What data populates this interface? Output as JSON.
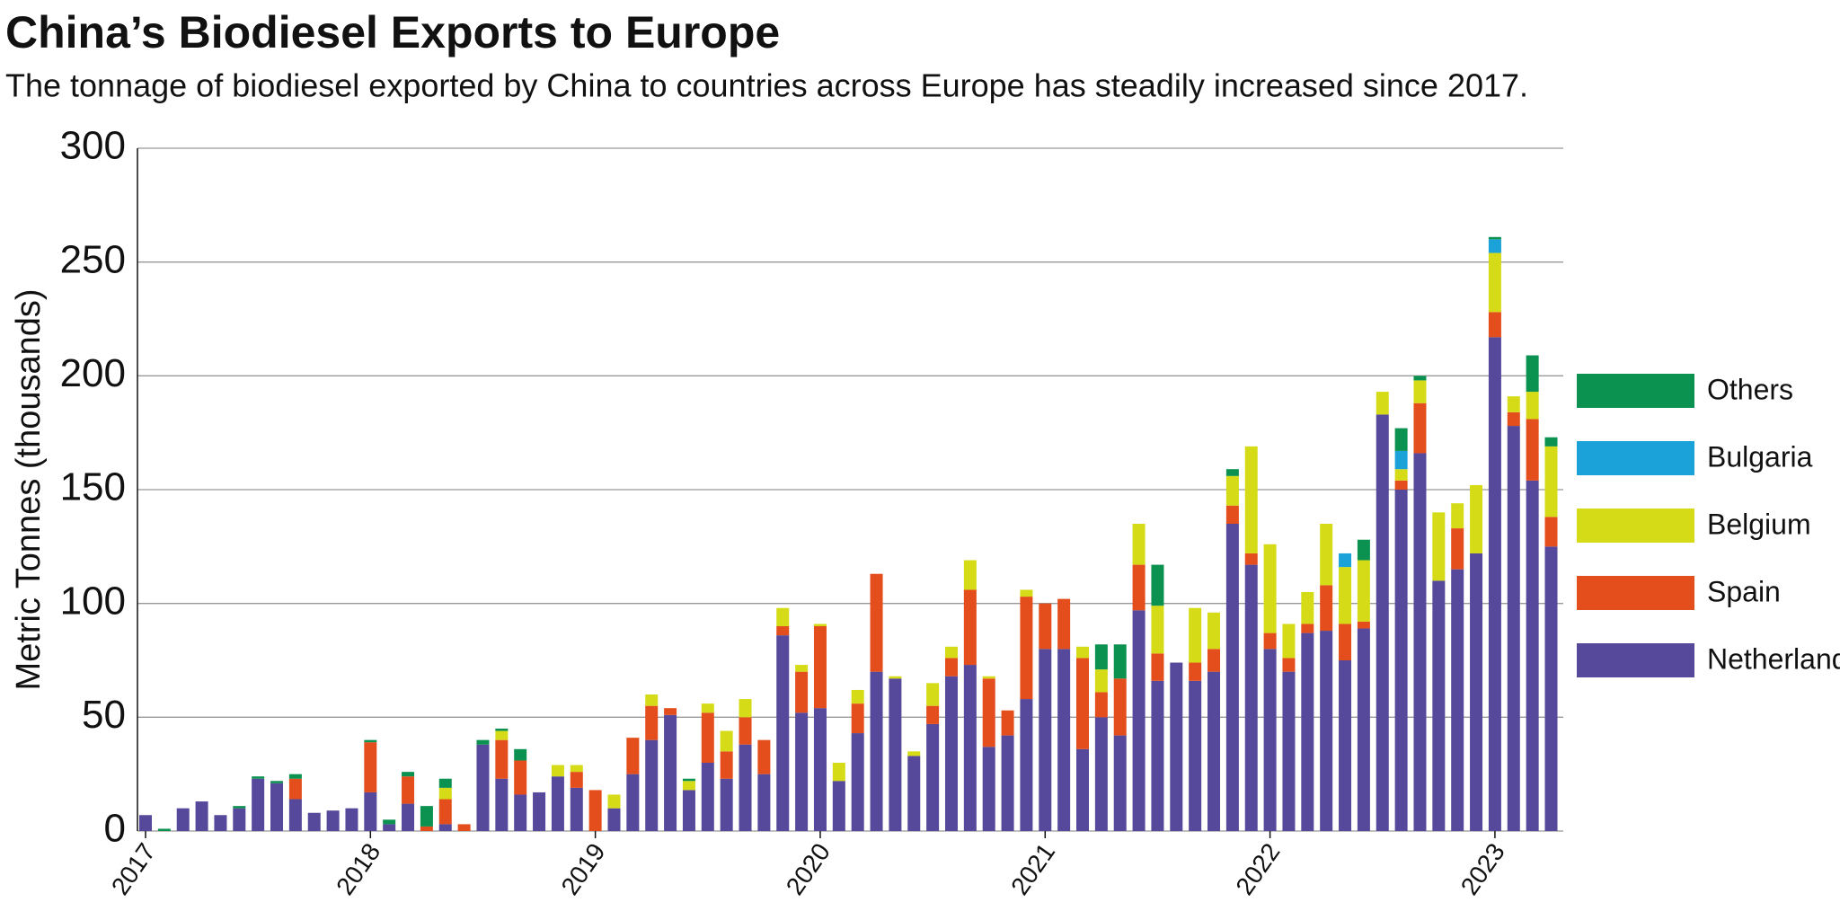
{
  "chart_data": {
    "type": "bar",
    "stacked": true,
    "title": "China’s Biodiesel Exports to Europe",
    "subtitle": "The tonnage of biodiesel exported by China to countries across Europe has steadily increased since 2017.",
    "y_label": "Metric Tonnes (thousands)",
    "categories": [
      "2017",
      null,
      null,
      null,
      null,
      null,
      null,
      null,
      null,
      null,
      null,
      null,
      "2018",
      null,
      null,
      null,
      null,
      null,
      null,
      null,
      null,
      null,
      null,
      null,
      "2019",
      null,
      null,
      null,
      null,
      null,
      null,
      null,
      null,
      null,
      null,
      null,
      "2020",
      null,
      null,
      null,
      null,
      null,
      null,
      null,
      null,
      null,
      null,
      null,
      "2021",
      null,
      null,
      null,
      null,
      null,
      null,
      null,
      null,
      null,
      null,
      null,
      "2022",
      null,
      null,
      null,
      null,
      null,
      null,
      null,
      null,
      null,
      null,
      null,
      "2023",
      null,
      null,
      null
    ],
    "series": [
      {
        "name": "Netherlands",
        "color": "#56489a",
        "values": [
          7,
          0,
          10,
          13,
          7,
          10,
          23,
          21,
          14,
          8,
          9,
          10,
          17,
          3,
          12,
          0,
          3,
          0,
          38,
          23,
          16,
          17,
          24,
          19,
          0,
          10,
          25,
          40,
          51,
          18,
          30,
          23,
          38,
          25,
          86,
          52,
          54,
          22,
          43,
          70,
          67,
          33,
          47,
          68,
          73,
          37,
          42,
          58,
          80,
          80,
          36,
          50,
          42,
          97,
          66,
          74,
          66,
          70,
          135,
          117,
          80,
          70,
          87,
          88,
          75,
          89,
          183,
          150,
          166,
          110,
          115,
          122,
          217,
          178,
          154,
          125
        ]
      },
      {
        "name": "Spain",
        "color": "#e44e1c",
        "values": [
          0,
          0,
          0,
          0,
          0,
          0,
          0,
          0,
          9,
          0,
          0,
          0,
          22,
          0,
          12,
          2,
          11,
          3,
          0,
          17,
          15,
          0,
          0,
          7,
          18,
          0,
          16,
          15,
          3,
          0,
          22,
          12,
          12,
          15,
          4,
          18,
          36,
          0,
          13,
          43,
          0,
          0,
          8,
          8,
          33,
          30,
          11,
          45,
          20,
          22,
          40,
          11,
          25,
          20,
          12,
          0,
          8,
          10,
          8,
          5,
          7,
          6,
          4,
          20,
          16,
          3,
          0,
          4,
          22,
          0,
          18,
          0,
          11,
          6,
          27,
          13
        ]
      },
      {
        "name": "Belgium",
        "color": "#d5dc17",
        "values": [
          0,
          0,
          0,
          0,
          0,
          0,
          0,
          0,
          0,
          0,
          0,
          0,
          0,
          0,
          0,
          0,
          5,
          0,
          0,
          4,
          0,
          0,
          5,
          3,
          0,
          6,
          0,
          5,
          0,
          4,
          4,
          9,
          8,
          0,
          8,
          3,
          1,
          8,
          6,
          0,
          1,
          2,
          10,
          5,
          13,
          1,
          0,
          3,
          0,
          0,
          5,
          10,
          0,
          18,
          21,
          0,
          24,
          16,
          13,
          47,
          39,
          15,
          14,
          27,
          25,
          27,
          10,
          5,
          10,
          30,
          11,
          30,
          26,
          7,
          12,
          31
        ]
      },
      {
        "name": "Bulgaria",
        "color": "#1ba2d8",
        "values": [
          0,
          0,
          0,
          0,
          0,
          0,
          0,
          0,
          0,
          0,
          0,
          0,
          0,
          0,
          0,
          0,
          0,
          0,
          0,
          0,
          0,
          0,
          0,
          0,
          0,
          0,
          0,
          0,
          0,
          0,
          0,
          0,
          0,
          0,
          0,
          0,
          0,
          0,
          0,
          0,
          0,
          0,
          0,
          0,
          0,
          0,
          0,
          0,
          0,
          0,
          0,
          0,
          0,
          0,
          0,
          0,
          0,
          0,
          0,
          0,
          0,
          0,
          0,
          0,
          6,
          0,
          0,
          8,
          0,
          0,
          0,
          0,
          6,
          0,
          0,
          0
        ]
      },
      {
        "name": "Others",
        "color": "#0b9150",
        "values": [
          0,
          1,
          0,
          0,
          0,
          1,
          1,
          1,
          2,
          0,
          0,
          0,
          1,
          2,
          2,
          9,
          4,
          0,
          2,
          1,
          5,
          0,
          0,
          0,
          0,
          0,
          0,
          0,
          0,
          1,
          0,
          0,
          0,
          0,
          0,
          0,
          0,
          0,
          0,
          0,
          0,
          0,
          0,
          0,
          0,
          0,
          0,
          0,
          0,
          0,
          0,
          11,
          15,
          0,
          18,
          0,
          0,
          0,
          3,
          0,
          0,
          0,
          0,
          0,
          0,
          9,
          0,
          10,
          2,
          0,
          0,
          0,
          1,
          0,
          16,
          4
        ]
      }
    ],
    "ylim": [
      0,
      300
    ],
    "yticks": [
      0,
      50,
      100,
      150,
      200,
      250,
      300
    ],
    "grid": true,
    "legend": "right"
  }
}
